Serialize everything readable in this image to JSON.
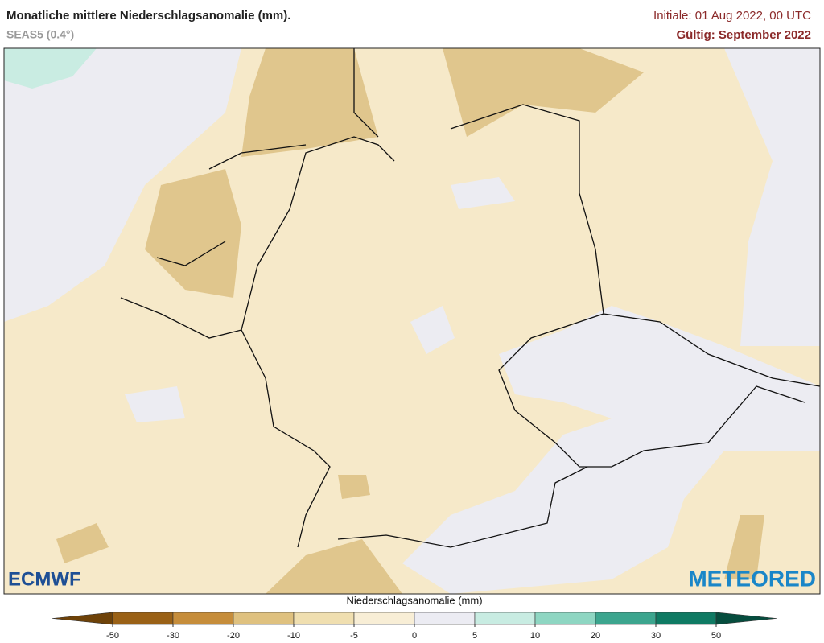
{
  "header": {
    "title": "Monatliche mittlere Niederschlagsanomalie (mm).",
    "subtitle": "SEAS5 (0.4°)",
    "initial": "Initiale: 01 Aug 2022, 00 UTC",
    "valid": "Gültig: September 2022"
  },
  "logos": {
    "left": "ECMWF",
    "right": "METEORED"
  },
  "legend": {
    "title": "Niederschlagsanomalie (mm)",
    "ticks": [
      -50,
      -30,
      -20,
      -10,
      -5,
      0,
      5,
      10,
      20,
      30,
      50
    ],
    "colors": [
      "#6e4208",
      "#9a6116",
      "#c68d3b",
      "#dfc17f",
      "#f0dfb0",
      "#f8eed6",
      "#ececf3",
      "#c8ece2",
      "#8ed6c2",
      "#3ca58e",
      "#0f7a63",
      "#064d3e"
    ]
  }
}
